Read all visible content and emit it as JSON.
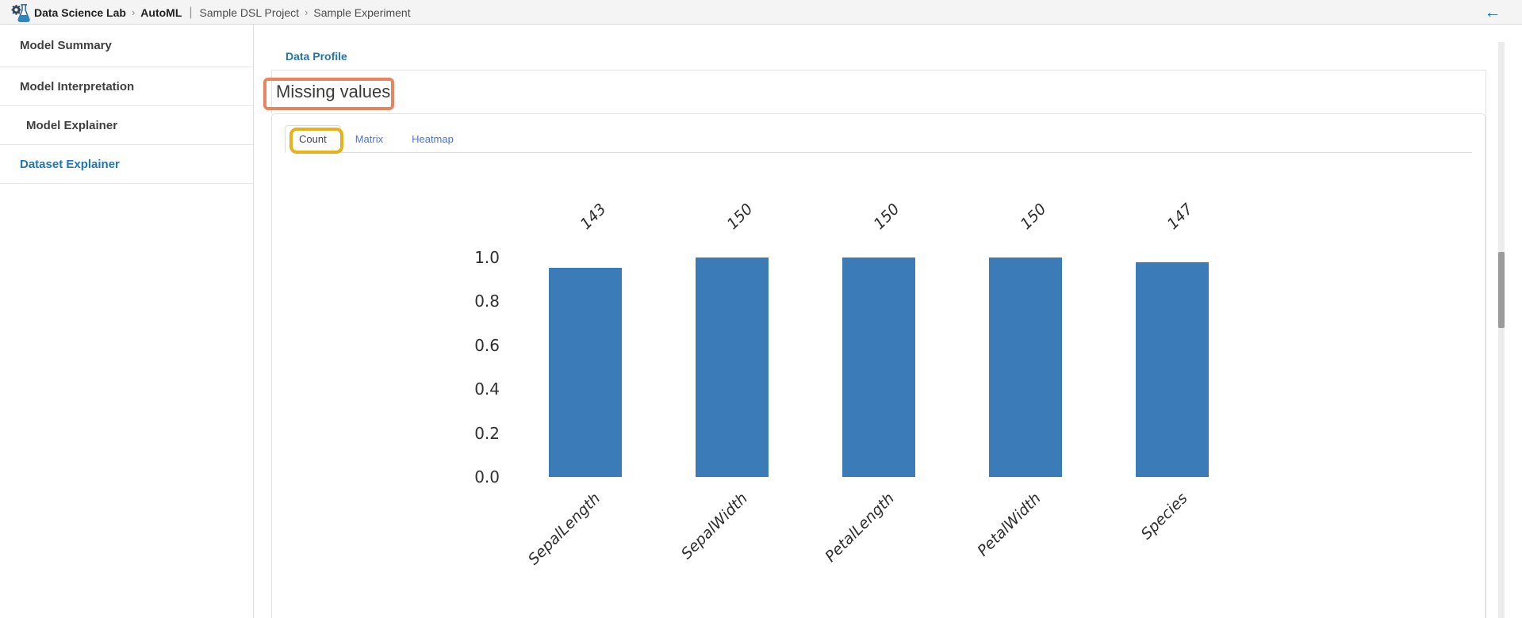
{
  "header": {
    "app_title": "Data Science Lab",
    "module": "AutoML",
    "chevron": "›",
    "divider": "|",
    "project": "Sample DSL Project",
    "experiment": "Sample Experiment",
    "back_icon": "←"
  },
  "sidebar": {
    "items": [
      {
        "label": "Model Summary",
        "active": false,
        "indent": false
      },
      {
        "label": "Model Interpretation",
        "active": false,
        "indent": false
      },
      {
        "label": "Model Explainer",
        "active": false,
        "indent": true
      },
      {
        "label": "Dataset Explainer",
        "active": true,
        "indent": false
      }
    ]
  },
  "main": {
    "breadcrumb_link": "Data Profile",
    "section_title": "Missing values",
    "tabs": [
      {
        "label": "Count",
        "active": true
      },
      {
        "label": "Matrix",
        "active": false
      },
      {
        "label": "Heatmap",
        "active": false
      }
    ]
  },
  "annotations": {
    "title_box_color": "#e8845e",
    "count_tab_box_color": "#e7b117"
  },
  "colors": {
    "link_blue": "#2176b4",
    "tab_link_blue": "#4673ef",
    "bar_blue": "#3b7cb8",
    "back_arrow_blue": "#1e6fb5"
  },
  "chart_data": {
    "type": "bar",
    "title": "",
    "xlabel": "",
    "ylabel": "",
    "categories": [
      "SepalLength",
      "SepalWidth",
      "PetalLength",
      "PetalWidth",
      "Species"
    ],
    "values": [
      143,
      150,
      150,
      150,
      147
    ],
    "bar_value_labels": [
      "143",
      "150",
      "150",
      "150",
      "147"
    ],
    "ylim": [
      0.0,
      1.0
    ],
    "yticks": [
      "0.0",
      "0.2",
      "0.4",
      "0.6",
      "0.8",
      "1.0"
    ],
    "grid": false,
    "legend": "none",
    "bar_color": "#3b7cb8",
    "note": "y axis is fraction of non-null rows; bars = value / 150"
  }
}
